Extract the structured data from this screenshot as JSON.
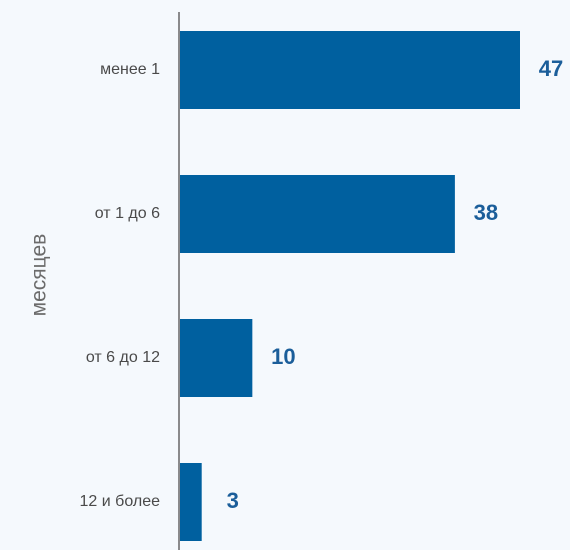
{
  "chart_data": {
    "type": "bar",
    "orientation": "horizontal",
    "ylabel": "месяцев",
    "xlabel": "",
    "title": "",
    "categories": [
      "менее 1",
      "от 1 до 6",
      "от 6 до 12",
      "12 и более"
    ],
    "values": [
      47,
      38,
      10,
      3
    ],
    "xlim": [
      0,
      50
    ],
    "grid": false,
    "legend": "none",
    "colors": {
      "bar": "#00609f",
      "value_label": "#1b5e9a",
      "axis": "#666666",
      "background": "#f5f9fd"
    }
  }
}
